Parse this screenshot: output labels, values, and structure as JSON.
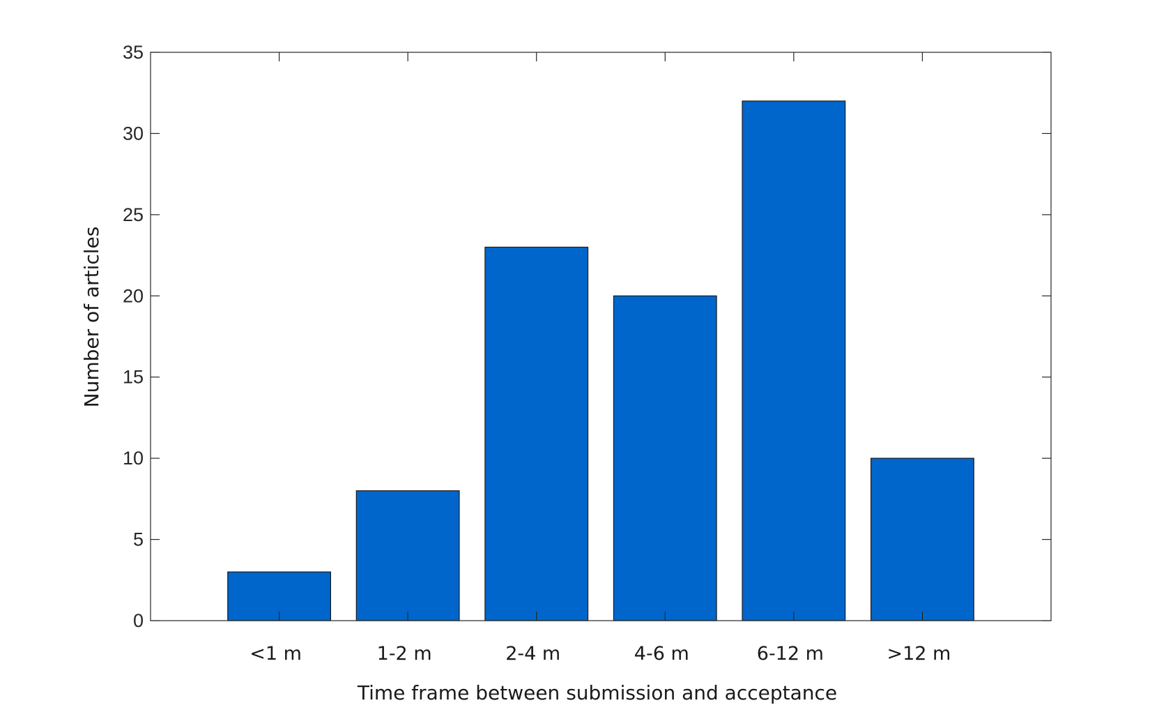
{
  "chart_data": {
    "type": "bar",
    "title": "",
    "xlabel": "Time frame between submission and acceptance",
    "ylabel": "Number of articles",
    "categories": [
      "<1 m",
      "1-2 m",
      "2-4 m",
      "4-6 m",
      "6-12 m",
      ">12 m"
    ],
    "values": [
      3,
      8,
      23,
      20,
      32,
      10
    ],
    "ylim": [
      0,
      35
    ],
    "yticks": [
      0,
      5,
      10,
      15,
      20,
      25,
      30,
      35
    ],
    "grid": false,
    "legend": "none",
    "bar_color": "#0066cc",
    "bar_edge_color": "#1a1a1a"
  }
}
